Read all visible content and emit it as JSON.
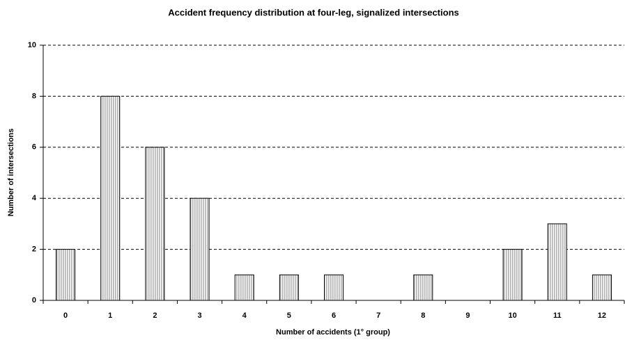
{
  "chart_data": {
    "type": "bar",
    "title": "Accident frequency distribution at four-leg, signalized intersections",
    "x_label": "Number of accidents (1° group)",
    "y_label": "Number of intersections",
    "categories": [
      "0",
      "1",
      "2",
      "3",
      "4",
      "5",
      "6",
      "7",
      "8",
      "9",
      "10",
      "11",
      "12"
    ],
    "values": [
      2,
      8,
      6,
      4,
      1,
      1,
      1,
      0,
      1,
      0,
      2,
      3,
      1
    ],
    "color": "#b0b0b0",
    "ylim": [
      0,
      10
    ],
    "yticks": [
      0,
      2,
      4,
      6,
      8,
      10
    ],
    "grid": true
  }
}
